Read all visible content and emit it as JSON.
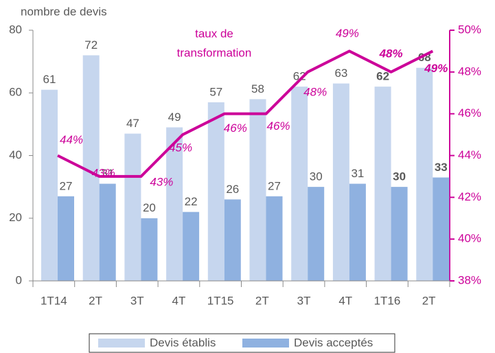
{
  "chart_data": {
    "type": "bar",
    "y_axis_label": "nombre de devis",
    "annotation": [
      "taux de",
      "transformation"
    ],
    "categories": [
      "1T14",
      "2T",
      "3T",
      "4T",
      "1T15",
      "2T",
      "3T",
      "4T",
      "1T16",
      "2T"
    ],
    "series": [
      {
        "name": "Devis établis",
        "color": "#c6d6ee",
        "values": [
          61,
          72,
          47,
          49,
          57,
          58,
          62,
          63,
          62,
          68
        ]
      },
      {
        "name": "Devis acceptés",
        "color": "#8fb1e0",
        "values": [
          27,
          31,
          20,
          22,
          26,
          27,
          30,
          31,
          30,
          33
        ]
      },
      {
        "name": "taux de transformation",
        "type": "line",
        "axis": "y2",
        "color": "#cc0099",
        "values": [
          44,
          43,
          43,
          45,
          46,
          46,
          48,
          49,
          48,
          49
        ],
        "value_labels": [
          "44%",
          "43%",
          "43%",
          "45%",
          "46%",
          "46%",
          "48%",
          "49%",
          "48%",
          "49%"
        ]
      }
    ],
    "ylim": [
      0,
      80
    ],
    "yticks": [
      0,
      20,
      40,
      60,
      80
    ],
    "y2lim": [
      38,
      50
    ],
    "y2ticks": [
      {
        "value": 38,
        "label": "38%"
      },
      {
        "value": 40,
        "label": "40%"
      },
      {
        "value": 42,
        "label": "42%"
      },
      {
        "value": 44,
        "label": "44%"
      },
      {
        "value": 46,
        "label": "46%"
      },
      {
        "value": 48,
        "label": "48%"
      },
      {
        "value": 50,
        "label": "50%"
      }
    ],
    "legend": "bottom"
  }
}
